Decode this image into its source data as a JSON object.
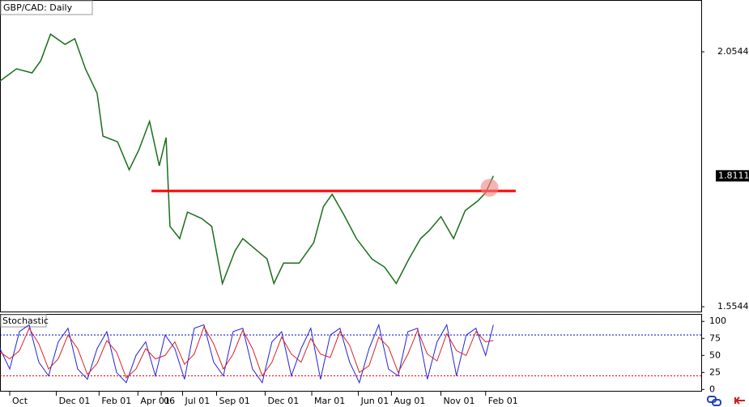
{
  "chart_data": [
    {
      "type": "line",
      "title": "GBP/CAD: Daily",
      "color": "#1a6e1a",
      "x": [
        0,
        17,
        33,
        42,
        52,
        67,
        77,
        88,
        100,
        106,
        121,
        133,
        143,
        154,
        164,
        171,
        175,
        185,
        193,
        208,
        218,
        229,
        242,
        250,
        265,
        275,
        282,
        292,
        308,
        323,
        333,
        342,
        354,
        367,
        383,
        396,
        408,
        421,
        433,
        442,
        454,
        467,
        479,
        492,
        500,
        508
      ],
      "values": [
        1.997,
        2.021,
        2.013,
        2.037,
        2.089,
        2.069,
        2.08,
        2.021,
        1.973,
        1.889,
        1.878,
        1.823,
        1.862,
        1.918,
        1.831,
        1.886,
        1.712,
        1.688,
        1.74,
        1.727,
        1.712,
        1.6,
        1.664,
        1.688,
        1.664,
        1.648,
        1.6,
        1.64,
        1.64,
        1.68,
        1.751,
        1.775,
        1.735,
        1.688,
        1.648,
        1.632,
        1.6,
        1.648,
        1.688,
        1.704,
        1.731,
        1.688,
        1.743,
        1.762,
        1.778,
        1.811
      ],
      "xlim": [
        0,
        722
      ],
      "xticks": [
        {
          "value": 10,
          "label": "Oct"
        },
        {
          "value": 58,
          "label": "Dec 01"
        },
        {
          "value": 102,
          "label": "Feb 01"
        },
        {
          "value": 142,
          "label": "Apr 01"
        },
        {
          "value": 166,
          "label": "06"
        },
        {
          "value": 188,
          "label": "Jul 01"
        },
        {
          "value": 223,
          "label": "Sep 01"
        },
        {
          "value": 273,
          "label": "Dec 01"
        },
        {
          "value": 321,
          "label": "Mar 01"
        },
        {
          "value": 369,
          "label": "Jun 01"
        },
        {
          "value": 403,
          "label": "Aug 01"
        },
        {
          "value": 454,
          "label": "Nov 01"
        },
        {
          "value": 500,
          "label": "Feb 01"
        }
      ],
      "ylim": [
        1.545,
        2.156
      ],
      "yticks": [
        2.0544,
        1.5544
      ],
      "last_price": 1.8111,
      "resistance": {
        "level": 1.7814,
        "x": [
          156,
          531
        ],
        "color": "#ff0000"
      },
      "highlight": {
        "x": 504,
        "y": 1.7877,
        "color": "#f08080"
      }
    },
    {
      "type": "stochastic",
      "title": "Stochastic",
      "xlim": [
        0,
        722
      ],
      "ylim": [
        -2,
        111
      ],
      "yticks": [
        100,
        75,
        50,
        25,
        0
      ],
      "levels": [
        {
          "value": 80,
          "color": "#0000cc"
        },
        {
          "value": 20,
          "color": "#dd0000"
        }
      ],
      "x": [
        0,
        10,
        20,
        30,
        40,
        50,
        60,
        70,
        80,
        90,
        100,
        110,
        120,
        130,
        140,
        150,
        160,
        170,
        180,
        190,
        200,
        210,
        220,
        230,
        240,
        250,
        260,
        270,
        280,
        290,
        300,
        310,
        320,
        330,
        340,
        350,
        360,
        370,
        380,
        390,
        400,
        410,
        420,
        430,
        440,
        450,
        460,
        470,
        480,
        490,
        500,
        508
      ],
      "series": [
        {
          "color": "#2222dd",
          "values": [
            60,
            30,
            85,
            95,
            40,
            20,
            70,
            90,
            30,
            15,
            60,
            85,
            25,
            10,
            50,
            70,
            20,
            80,
            60,
            15,
            90,
            95,
            40,
            20,
            85,
            90,
            30,
            10,
            70,
            85,
            20,
            60,
            90,
            15,
            80,
            90,
            40,
            10,
            60,
            95,
            30,
            20,
            85,
            90,
            15,
            70,
            95,
            20,
            80,
            90,
            50,
            95
          ]
        },
        {
          "color": "#dd2222",
          "values": [
            55,
            45,
            57,
            90,
            67,
            30,
            45,
            80,
            60,
            22,
            38,
            72,
            55,
            17,
            30,
            60,
            45,
            50,
            70,
            37,
            52,
            92,
            67,
            30,
            52,
            87,
            60,
            20,
            40,
            77,
            52,
            40,
            75,
            52,
            47,
            85,
            65,
            25,
            35,
            77,
            62,
            25,
            52,
            87,
            52,
            42,
            82,
            57,
            50,
            85,
            70,
            72
          ]
        }
      ]
    }
  ]
}
